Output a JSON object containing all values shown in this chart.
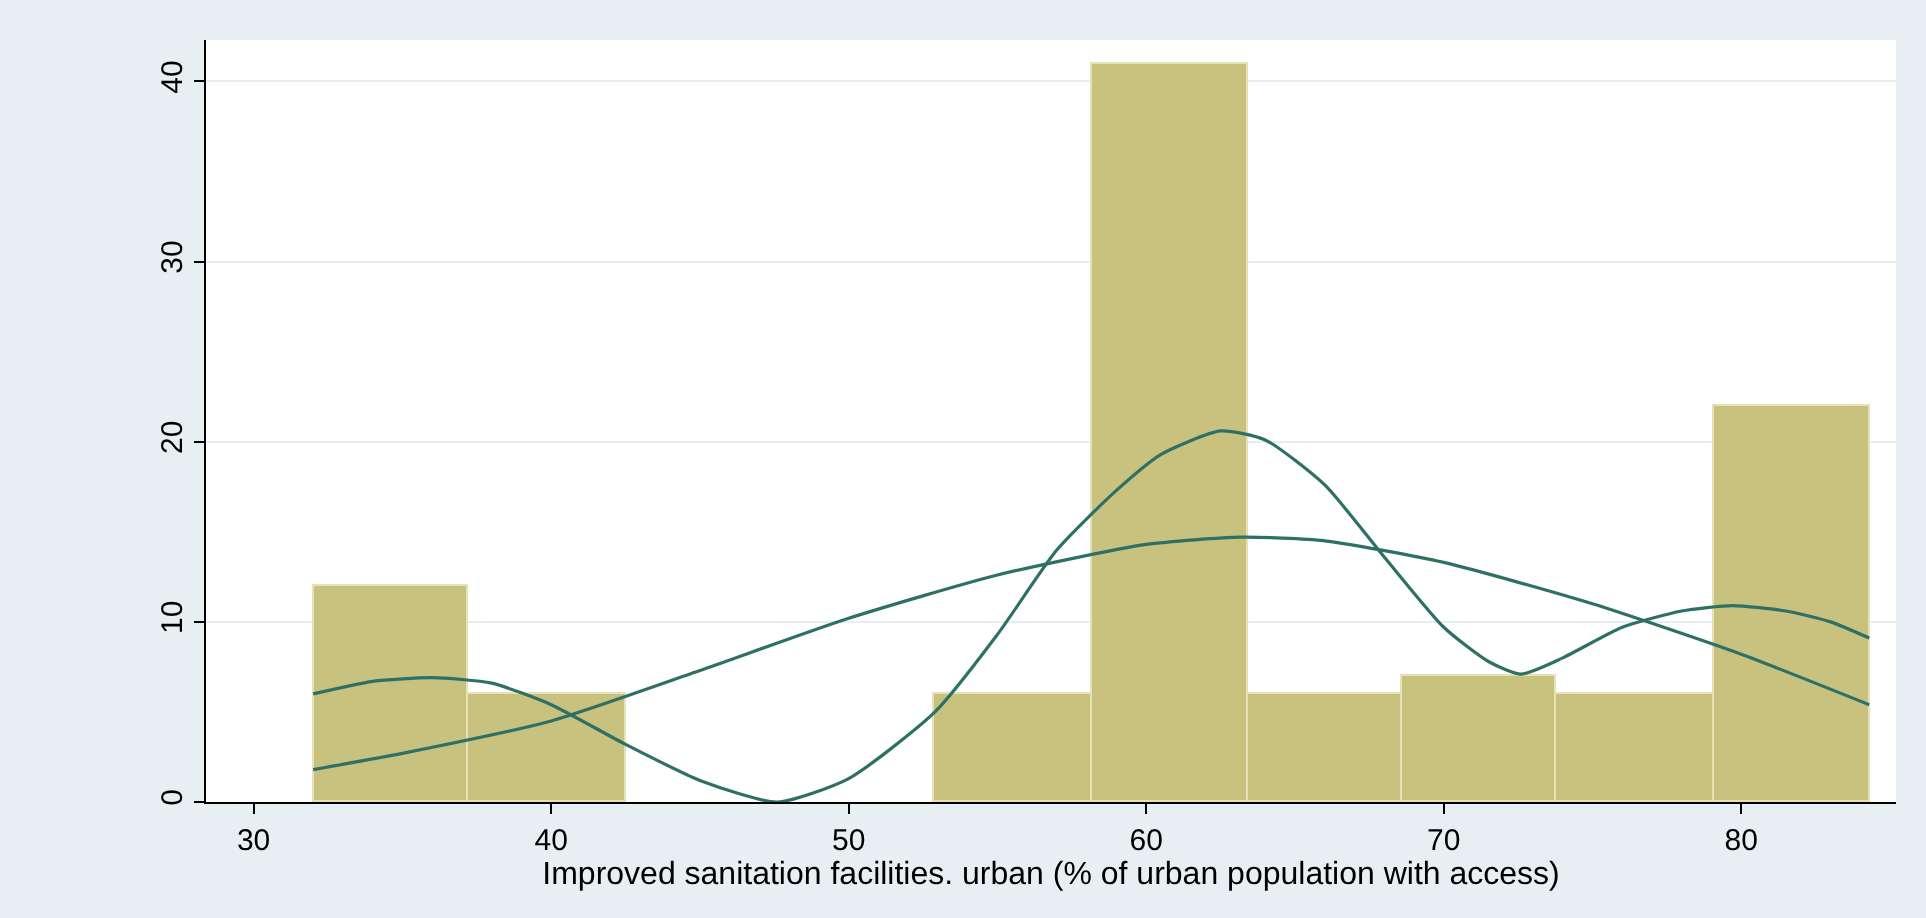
{
  "chart_data": {
    "type": "histogram",
    "xlabel": "Improved sanitation facilities. urban (% of urban population with access)",
    "bins": [
      32,
      37.2,
      42.5,
      52.9,
      58.2,
      63.4,
      68.6,
      73.8,
      79.1,
      84.3
    ],
    "values": [
      12,
      6,
      0,
      6,
      41,
      6,
      7,
      6,
      22
    ],
    "color": "#c9c27e",
    "series": [
      {
        "type": "line",
        "color": "#2e7066",
        "x": [
          32,
          34,
          36,
          38,
          40,
          42.5,
          45,
          47.6,
          50,
          52.9,
          55,
          57,
          59,
          60.5,
          62.5,
          64,
          66,
          68,
          70,
          71.5,
          72.6,
          74,
          76,
          78,
          79.7,
          81.5,
          83,
          84.3
        ],
        "values": [
          6,
          6.7,
          6.9,
          6.6,
          5.4,
          3.2,
          1.2,
          0,
          1.3,
          5,
          9.3,
          14,
          17.3,
          19.3,
          20.6,
          20.1,
          17.6,
          13.6,
          9.7,
          7.8,
          7.1,
          8,
          9.7,
          10.6,
          10.9,
          10.6,
          10,
          9.1
        ]
      },
      {
        "type": "line",
        "color": "#2e7066",
        "x": [
          32,
          35,
          40,
          45,
          50,
          55,
          60,
          63.2,
          66,
          70,
          75,
          80,
          84.3
        ],
        "values": [
          1.8,
          2.7,
          4.5,
          7.3,
          10.2,
          12.6,
          14.3,
          14.7,
          14.5,
          13.3,
          11,
          8.2,
          5.4
        ]
      }
    ],
    "xlim": [
      28.4,
      85.2
    ],
    "ylim": [
      0,
      42.3
    ],
    "xticks": [
      30,
      40,
      50,
      60,
      70,
      80
    ],
    "yticks": [
      0,
      10,
      20,
      30,
      40
    ],
    "grid": "y"
  }
}
